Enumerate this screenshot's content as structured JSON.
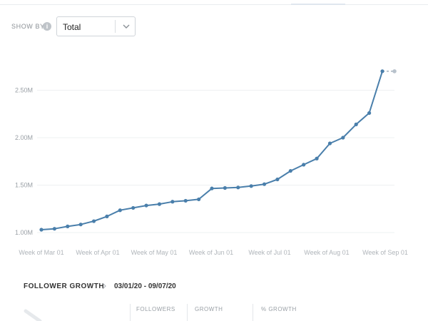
{
  "controls": {
    "show_by_label": "SHOW BY",
    "show_by_value": "Total"
  },
  "chart_data": {
    "type": "line",
    "x_labels": [
      "Week of Mar 01",
      "Week of Apr 01",
      "Week of May 01",
      "Week of Jun 01",
      "Week of Jul 01",
      "Week of Aug 01",
      "Week of Sep 01"
    ],
    "y_tick_labels": [
      "1.00M",
      "1.50M",
      "2.00M",
      "2.50M"
    ],
    "y_ticks": [
      1000000,
      1500000,
      2000000,
      2500000
    ],
    "ylim": [
      1000000,
      2700000
    ],
    "grid": true,
    "series": [
      {
        "values": [
          1030000,
          1040000,
          1065000,
          1085000,
          1120000,
          1170000,
          1235000,
          1260000,
          1285000,
          1300000,
          1325000,
          1335000,
          1350000,
          1465000,
          1470000,
          1475000,
          1490000,
          1510000,
          1560000,
          1650000,
          1715000,
          1780000,
          1940000,
          2000000,
          2140000,
          2260000,
          2700000
        ],
        "color": "#4a7fab",
        "projected_value": 2700000,
        "projected_color": "#b8c2cc"
      }
    ]
  },
  "follower_growth": {
    "title": "FOLLOWER GROWTH",
    "date_range": "03/01/20 - 09/07/20",
    "columns": [
      "FOLLOWERS",
      "GROWTH",
      "% GROWTH"
    ]
  }
}
